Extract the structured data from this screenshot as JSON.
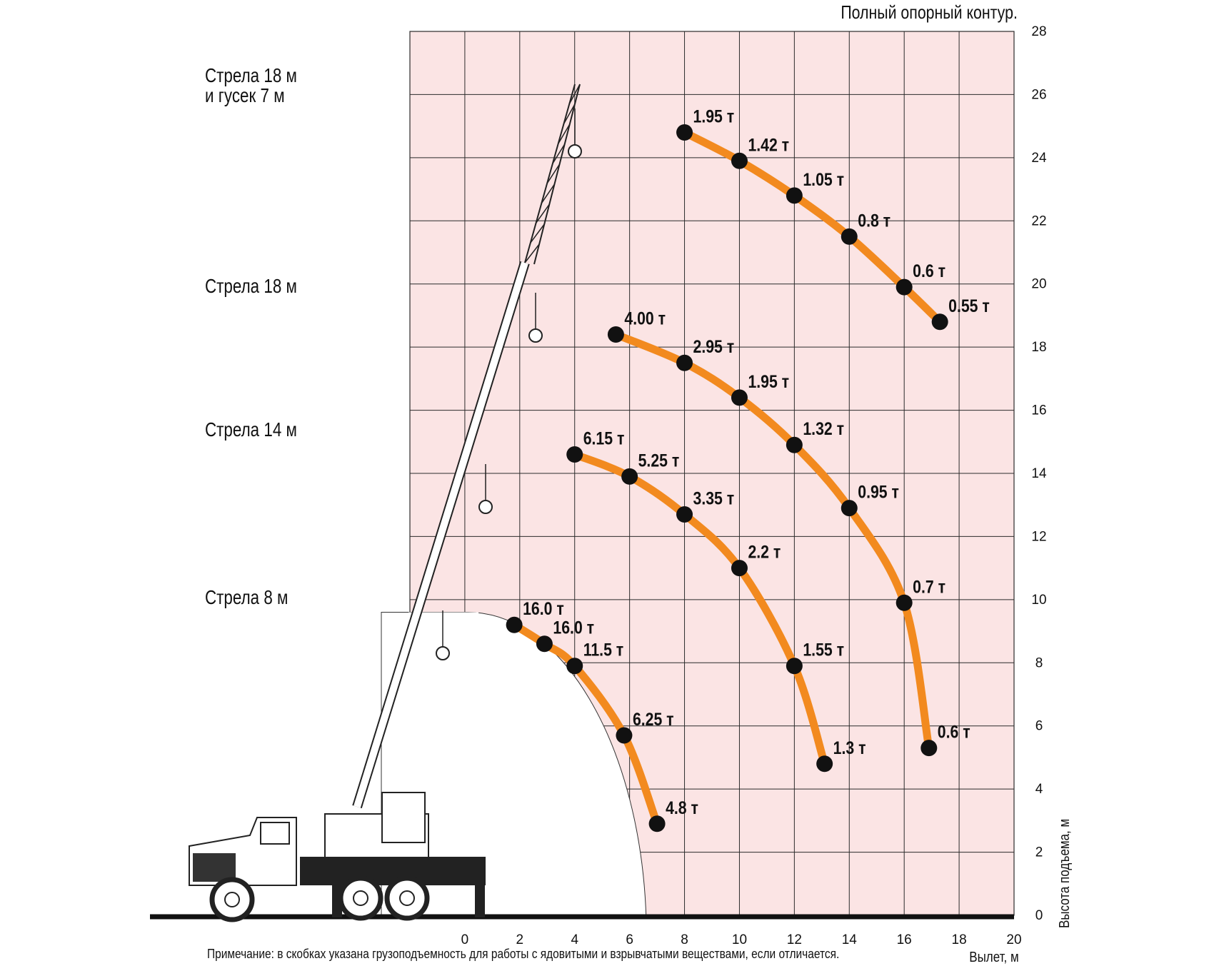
{
  "title": "Полный опорный контур.",
  "note": "Примечание: в скобках указана грузоподъемность для работы с ядовитыми и взрывчатыми веществами, если отличается.",
  "boom_labels": [
    {
      "line1": "Стрела 18 м",
      "line2": "и гусек 7 м"
    },
    {
      "line1": "Стрела 18 м",
      "line2": ""
    },
    {
      "line1": "Стрела 14 м",
      "line2": ""
    },
    {
      "line1": "Стрела 8 м",
      "line2": ""
    }
  ],
  "colors": {
    "grid_bg": "#fbe4e4",
    "grid_line": "#2b2b2b",
    "curve": "#f28a1f",
    "point": "#111111",
    "ground": "#111111"
  },
  "chart_data": {
    "type": "line",
    "xlabel": "Вылет, м",
    "ylabel": "Высота подъема, м",
    "xlim": [
      -2,
      20
    ],
    "ylim": [
      0,
      28
    ],
    "x_ticks": [
      0,
      2,
      4,
      6,
      8,
      10,
      12,
      14,
      16,
      18,
      20
    ],
    "y_ticks": [
      0,
      2,
      4,
      6,
      8,
      10,
      12,
      14,
      16,
      18,
      20,
      22,
      24,
      26,
      28
    ],
    "grid": true,
    "series": [
      {
        "name": "Стрела 18 м и гусек 7 м",
        "points": [
          {
            "x": 8.0,
            "y": 24.8,
            "label": "1.95 т"
          },
          {
            "x": 10.0,
            "y": 23.9,
            "label": "1.42 т"
          },
          {
            "x": 12.0,
            "y": 22.8,
            "label": "1.05 т"
          },
          {
            "x": 14.0,
            "y": 21.5,
            "label": "0.8 т"
          },
          {
            "x": 16.0,
            "y": 19.9,
            "label": "0.6 т"
          },
          {
            "x": 17.3,
            "y": 18.8,
            "label": "0.55 т"
          }
        ]
      },
      {
        "name": "Стрела 18 м",
        "points": [
          {
            "x": 5.5,
            "y": 18.4,
            "label": "4.00 т"
          },
          {
            "x": 8.0,
            "y": 17.5,
            "label": "2.95 т"
          },
          {
            "x": 10.0,
            "y": 16.4,
            "label": "1.95 т"
          },
          {
            "x": 12.0,
            "y": 14.9,
            "label": "1.32 т"
          },
          {
            "x": 14.0,
            "y": 12.9,
            "label": "0.95 т"
          },
          {
            "x": 16.0,
            "y": 9.9,
            "label": "0.7 т"
          },
          {
            "x": 16.9,
            "y": 5.3,
            "label": "0.6 т"
          }
        ]
      },
      {
        "name": "Стрела 14 м",
        "points": [
          {
            "x": 4.0,
            "y": 14.6,
            "label": "6.15 т"
          },
          {
            "x": 6.0,
            "y": 13.9,
            "label": "5.25 т"
          },
          {
            "x": 8.0,
            "y": 12.7,
            "label": "3.35 т"
          },
          {
            "x": 10.0,
            "y": 11.0,
            "label": "2.2 т"
          },
          {
            "x": 12.0,
            "y": 7.9,
            "label": "1.55 т"
          },
          {
            "x": 13.1,
            "y": 4.8,
            "label": "1.3 т"
          }
        ]
      },
      {
        "name": "Стрела 8 м",
        "points": [
          {
            "x": 1.8,
            "y": 9.2,
            "label": "16.0 т"
          },
          {
            "x": 2.9,
            "y": 8.6,
            "label": "16.0 т"
          },
          {
            "x": 4.0,
            "y": 7.9,
            "label": "11.5 т"
          },
          {
            "x": 5.8,
            "y": 5.7,
            "label": "6.25 т"
          },
          {
            "x": 7.0,
            "y": 2.9,
            "label": "4.8 т"
          }
        ]
      }
    ]
  }
}
